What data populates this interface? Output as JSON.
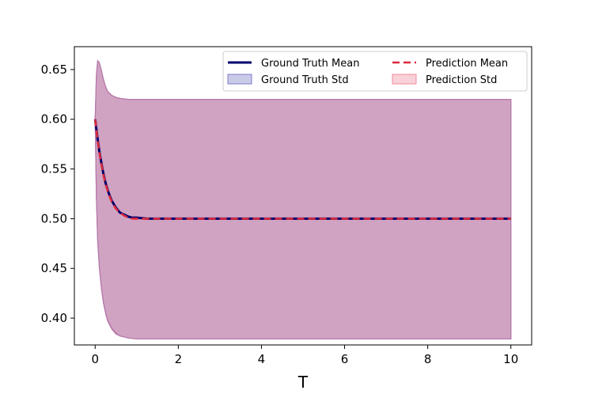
{
  "chart_data": {
    "type": "line",
    "title": "",
    "xlabel": "T",
    "ylabel": "",
    "xlim": [
      -0.5,
      10.5
    ],
    "ylim": [
      0.373,
      0.673
    ],
    "xticks": [
      0,
      2,
      4,
      6,
      8,
      10
    ],
    "xtick_labels": [
      "0",
      "2",
      "4",
      "6",
      "8",
      "10"
    ],
    "yticks": [
      0.4,
      0.45,
      0.5,
      0.55,
      0.6,
      0.65
    ],
    "ytick_labels": [
      "0.40",
      "0.45",
      "0.50",
      "0.55",
      "0.60",
      "0.65"
    ],
    "grid": false,
    "legend_position": "top-right",
    "colors": {
      "ground_truth_mean": "#00006e",
      "prediction_mean": "#dc2a3c",
      "ground_truth_std": "#7b7bc9",
      "prediction_std": "#f08c9e",
      "overlap_fill": "#cfa5c6",
      "band_edge": "#b67aab"
    },
    "series": [
      {
        "name": "Ground Truth Mean",
        "style": "solid",
        "x": [
          0,
          0.05,
          0.1,
          0.15,
          0.2,
          0.25,
          0.3,
          0.35,
          0.4,
          0.5,
          0.6,
          0.7,
          0.8,
          0.9,
          1.0,
          1.25,
          1.5,
          2,
          3,
          4,
          5,
          6,
          7,
          8,
          9,
          10
        ],
        "y": [
          0.6,
          0.583,
          0.568,
          0.556,
          0.545,
          0.536,
          0.529,
          0.523,
          0.518,
          0.511,
          0.506,
          0.504,
          0.502,
          0.501,
          0.501,
          0.5,
          0.5,
          0.5,
          0.5,
          0.5,
          0.5,
          0.5,
          0.5,
          0.5,
          0.5,
          0.5
        ]
      },
      {
        "name": "Prediction Mean",
        "style": "dashed",
        "x": [
          0,
          0.05,
          0.1,
          0.15,
          0.2,
          0.25,
          0.3,
          0.35,
          0.4,
          0.5,
          0.6,
          0.7,
          0.8,
          0.9,
          1.0,
          1.25,
          1.5,
          2,
          3,
          4,
          5,
          6,
          7,
          8,
          9,
          10
        ],
        "y": [
          0.6,
          0.582,
          0.567,
          0.555,
          0.544,
          0.535,
          0.528,
          0.522,
          0.517,
          0.51,
          0.506,
          0.503,
          0.501,
          0.5,
          0.5,
          0.5,
          0.5,
          0.5,
          0.5,
          0.5,
          0.5,
          0.5,
          0.5,
          0.5,
          0.5,
          0.5
        ]
      }
    ],
    "bands": [
      {
        "name": "Ground Truth Std",
        "x": [
          0,
          0.03,
          0.06,
          0.1,
          0.15,
          0.2,
          0.25,
          0.3,
          0.4,
          0.5,
          0.6,
          0.8,
          1.0,
          1.5,
          2,
          4,
          6,
          8,
          10
        ],
        "upper": [
          0.6,
          0.645,
          0.659,
          0.657,
          0.649,
          0.64,
          0.633,
          0.628,
          0.624,
          0.622,
          0.621,
          0.62,
          0.62,
          0.62,
          0.62,
          0.62,
          0.62,
          0.62,
          0.62
        ],
        "lower": [
          0.6,
          0.521,
          0.478,
          0.451,
          0.43,
          0.415,
          0.405,
          0.397,
          0.389,
          0.384,
          0.382,
          0.38,
          0.379,
          0.379,
          0.379,
          0.379,
          0.379,
          0.379,
          0.379
        ]
      },
      {
        "name": "Prediction Std",
        "x": [
          0,
          0.03,
          0.06,
          0.1,
          0.15,
          0.2,
          0.25,
          0.3,
          0.4,
          0.5,
          0.6,
          0.8,
          1.0,
          1.5,
          2,
          4,
          6,
          8,
          10
        ],
        "upper": [
          0.6,
          0.644,
          0.658,
          0.657,
          0.649,
          0.64,
          0.633,
          0.628,
          0.624,
          0.622,
          0.621,
          0.62,
          0.62,
          0.62,
          0.62,
          0.62,
          0.62,
          0.62,
          0.62
        ],
        "lower": [
          0.6,
          0.522,
          0.479,
          0.452,
          0.431,
          0.416,
          0.406,
          0.398,
          0.39,
          0.385,
          0.382,
          0.38,
          0.379,
          0.379,
          0.379,
          0.379,
          0.379,
          0.379,
          0.379
        ]
      }
    ],
    "legend": [
      {
        "label": "Ground Truth Mean",
        "kind": "line",
        "style": "solid",
        "color_key": "ground_truth_mean"
      },
      {
        "label": "Prediction Mean",
        "kind": "line",
        "style": "dashed",
        "color_key": "prediction_mean"
      },
      {
        "label": "Ground Truth Std",
        "kind": "patch",
        "color_key": "ground_truth_std"
      },
      {
        "label": "Prediction Std",
        "kind": "patch",
        "color_key": "prediction_std"
      }
    ]
  }
}
